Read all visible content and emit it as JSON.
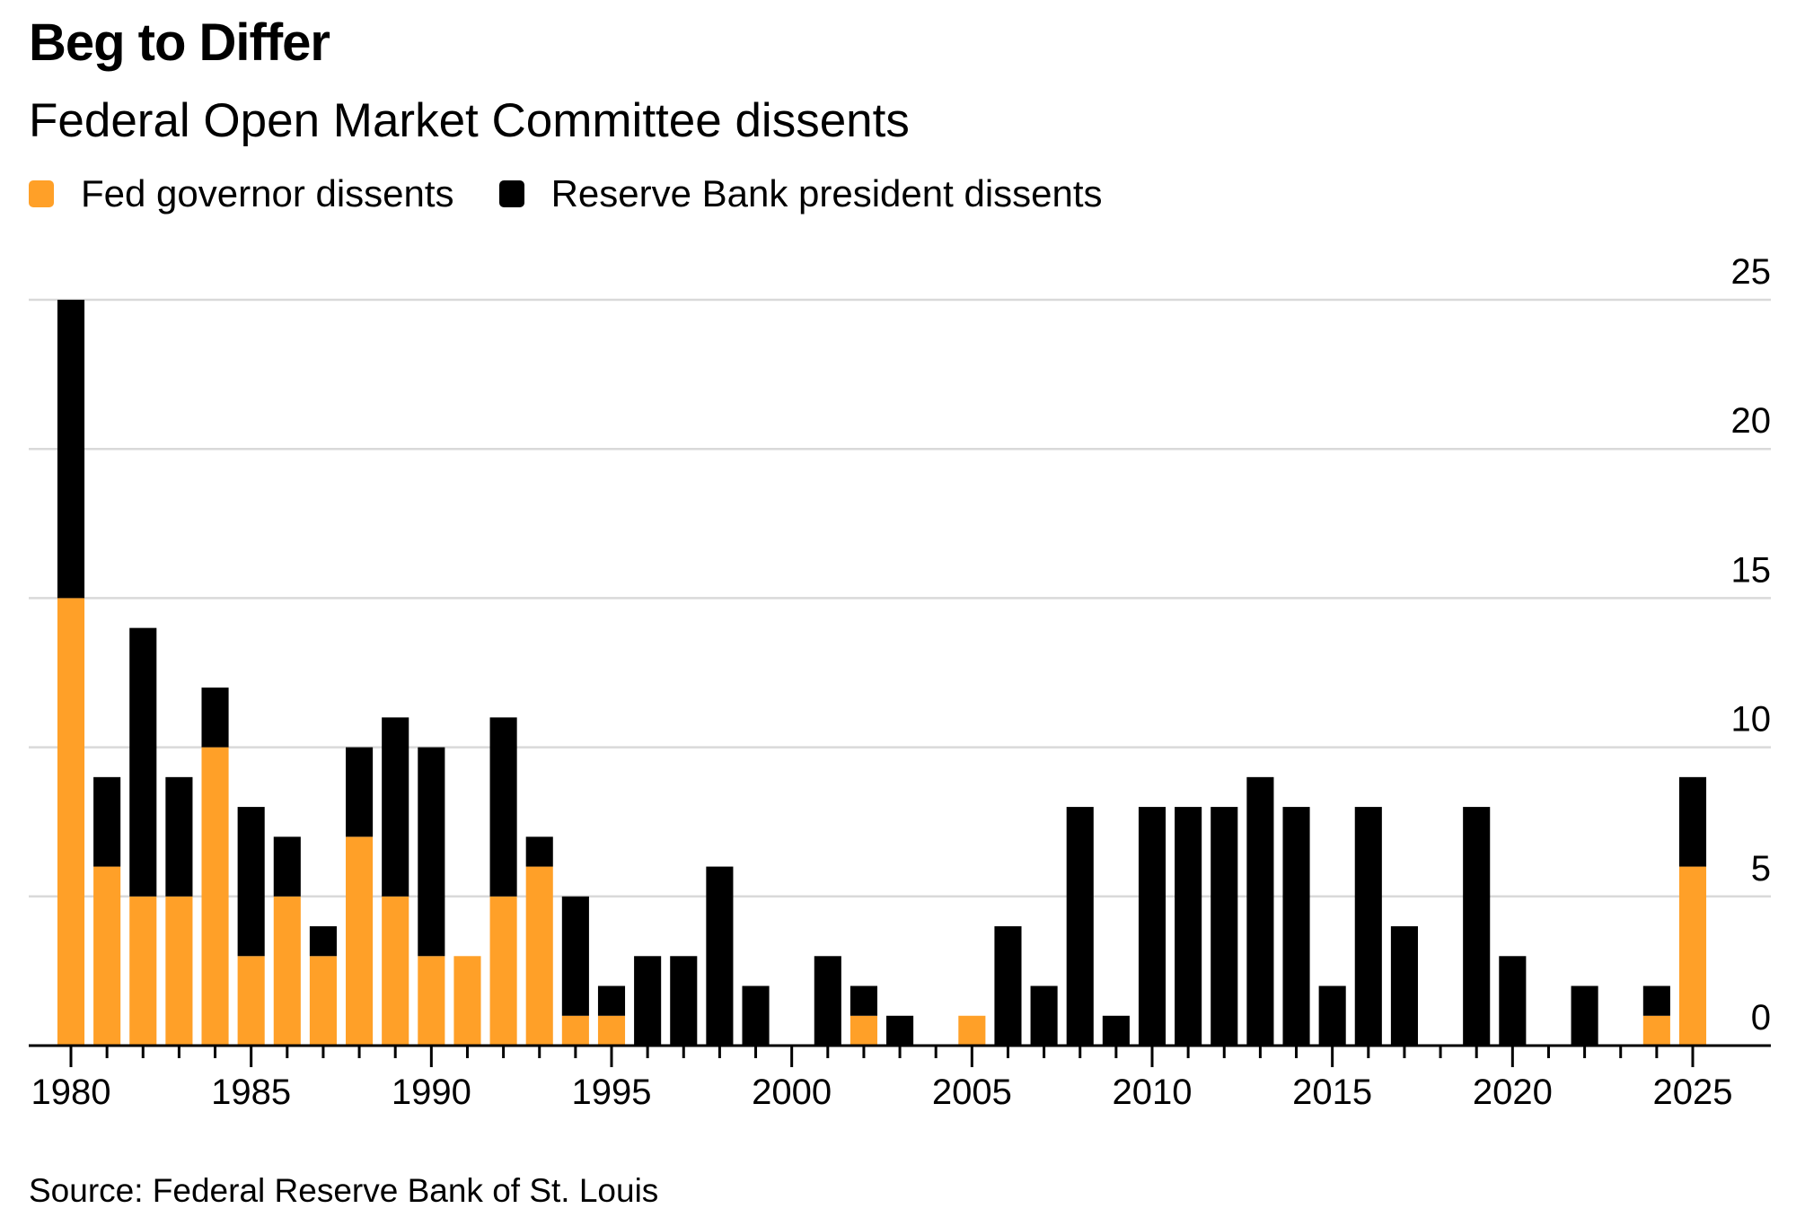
{
  "chart_data": {
    "type": "bar",
    "stacked": true,
    "title": "Beg to Differ",
    "subtitle": "Federal Open Market Committee dissents",
    "xlabel": "",
    "ylabel": "",
    "ylim": [
      0,
      25
    ],
    "yticks": [
      0,
      5,
      10,
      15,
      20,
      25
    ],
    "y_axis_position": "right",
    "grid": true,
    "legend_position": "top-left",
    "x": [
      1980,
      1981,
      1982,
      1983,
      1984,
      1985,
      1986,
      1987,
      1988,
      1989,
      1990,
      1991,
      1992,
      1993,
      1994,
      1995,
      1996,
      1997,
      1998,
      1999,
      2000,
      2001,
      2002,
      2003,
      2004,
      2005,
      2006,
      2007,
      2008,
      2009,
      2010,
      2011,
      2012,
      2013,
      2014,
      2015,
      2016,
      2017,
      2018,
      2019,
      2020,
      2021,
      2022,
      2023,
      2024,
      2025
    ],
    "xtick_labels": [
      "1980",
      "1985",
      "1990",
      "1995",
      "2000",
      "2005",
      "2010",
      "2015",
      "2020",
      "2025"
    ],
    "series": [
      {
        "name": "Fed governor dissents",
        "color": "#FFA028",
        "values": [
          15,
          6,
          5,
          5,
          10,
          3,
          5,
          3,
          7,
          5,
          3,
          3,
          5,
          6,
          1,
          1,
          0,
          0,
          0,
          0,
          0,
          0,
          1,
          0,
          0,
          1,
          0,
          0,
          0,
          0,
          0,
          0,
          0,
          0,
          0,
          0,
          0,
          0,
          0,
          0,
          0,
          0,
          0,
          0,
          1,
          6
        ]
      },
      {
        "name": "Reserve Bank president dissents",
        "color": "#000000",
        "values": [
          10,
          3,
          9,
          4,
          2,
          5,
          2,
          1,
          3,
          6,
          7,
          0,
          6,
          1,
          4,
          1,
          3,
          3,
          6,
          2,
          0,
          3,
          1,
          1,
          0,
          0,
          4,
          2,
          8,
          1,
          8,
          8,
          8,
          9,
          8,
          2,
          8,
          4,
          0,
          8,
          3,
          0,
          2,
          0,
          1,
          3
        ]
      }
    ],
    "source": "Source: Federal Reserve Bank of St. Louis"
  },
  "colors": {
    "governor": "#FFA028",
    "president": "#000000",
    "gridline": "#D9D9D9",
    "axis": "#000000"
  }
}
